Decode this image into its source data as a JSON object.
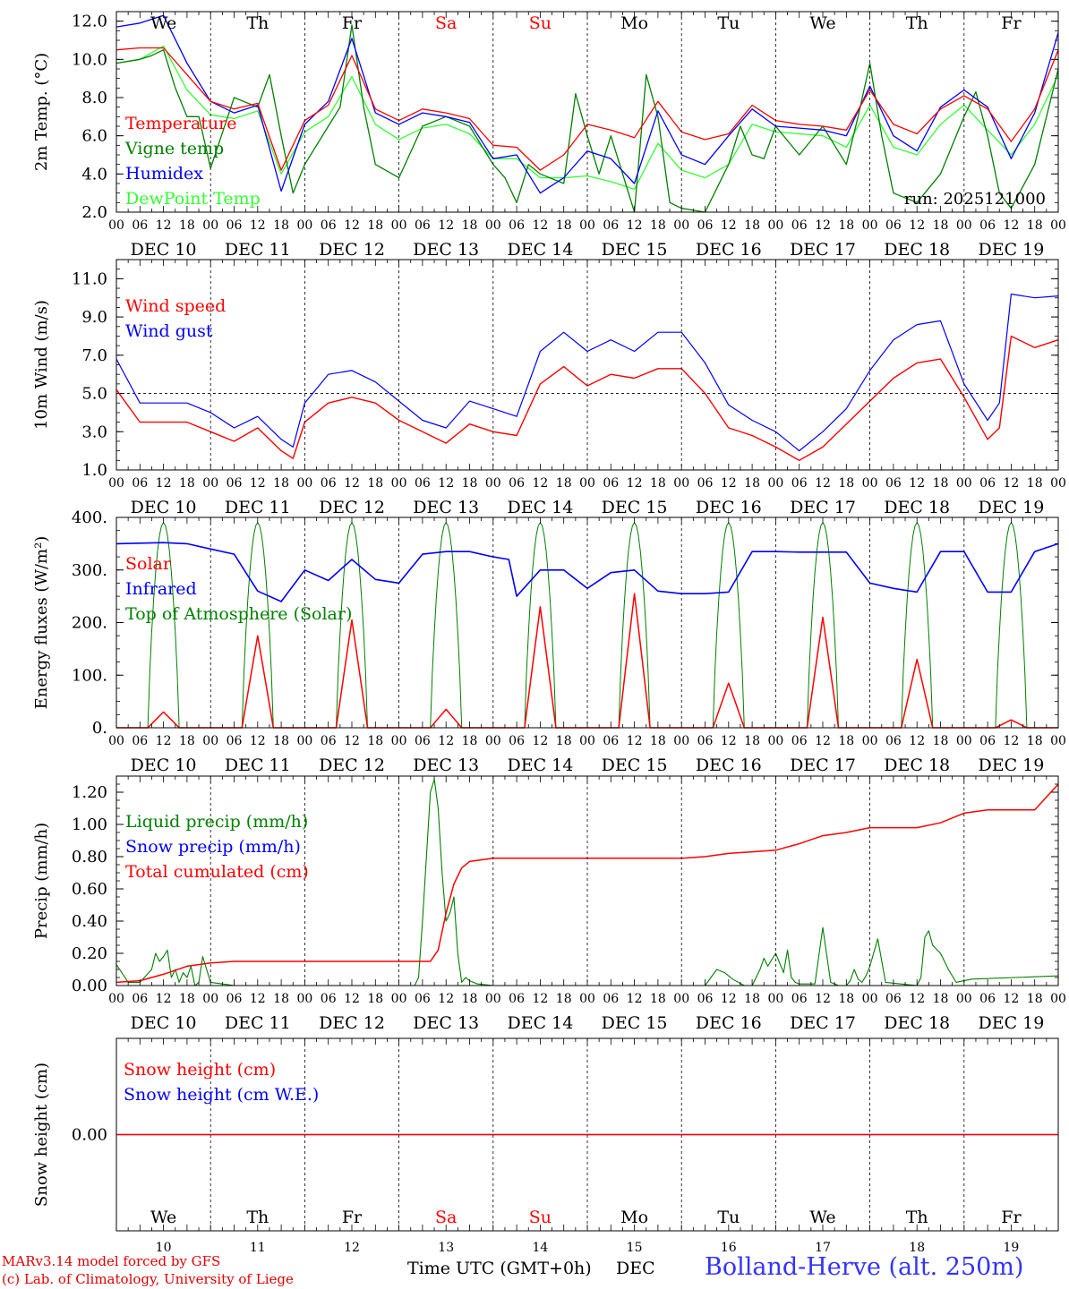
{
  "chart_data": [
    {
      "id": "temp",
      "type": "line",
      "ylabel": "2m Temp. (°C)",
      "ylim": [
        2.0,
        12.5
      ],
      "yticks": [
        2.0,
        4.0,
        6.0,
        8.0,
        10.0,
        12.0
      ],
      "annotation": "run: 2025121000",
      "series": [
        {
          "name": "Temperature",
          "color": "#ff0000",
          "x": [
            0,
            6,
            12,
            18,
            24,
            30,
            36,
            42,
            48,
            54,
            60,
            66,
            72,
            78,
            84,
            90,
            96,
            102,
            108,
            114,
            120,
            126,
            132,
            138,
            144,
            150,
            156,
            162,
            168,
            174,
            180,
            186,
            192,
            198,
            204,
            210,
            216,
            222,
            228,
            234,
            240
          ],
          "y": [
            10.5,
            10.6,
            10.6,
            9.2,
            7.8,
            7.4,
            7.7,
            4.2,
            6.8,
            7.6,
            10.2,
            7.4,
            6.8,
            7.4,
            7.2,
            6.9,
            5.5,
            5.4,
            4.2,
            5.0,
            6.6,
            6.3,
            5.9,
            7.8,
            6.2,
            5.8,
            6.1,
            7.6,
            6.8,
            6.6,
            6.5,
            6.3,
            8.4,
            6.6,
            6.1,
            7.4,
            8.1,
            7.4,
            5.7,
            7.4,
            10.5
          ]
        },
        {
          "name": "Vigne temp",
          "color": "#008000",
          "x": [
            0,
            6,
            9,
            12,
            15,
            18,
            21,
            24,
            30,
            36,
            39,
            42,
            45,
            48,
            54,
            57,
            60,
            63,
            66,
            72,
            78,
            84,
            90,
            96,
            99,
            102,
            105,
            108,
            114,
            117,
            120,
            123,
            126,
            132,
            135,
            138,
            141,
            144,
            150,
            156,
            159,
            162,
            165,
            168,
            174,
            180,
            186,
            189,
            192,
            195,
            198,
            204,
            210,
            216,
            219,
            222,
            225,
            228,
            234,
            240
          ],
          "y": [
            9.8,
            10.0,
            10.2,
            10.5,
            8.5,
            7.0,
            7.0,
            4.3,
            8.0,
            7.5,
            9.2,
            6.0,
            3.0,
            4.5,
            6.5,
            7.5,
            11.8,
            7.5,
            4.5,
            3.8,
            6.5,
            7.0,
            6.5,
            4.5,
            3.8,
            2.5,
            4.5,
            4.0,
            3.5,
            8.2,
            6.0,
            4.0,
            6.0,
            2.0,
            9.2,
            7.0,
            2.5,
            2.2,
            2.0,
            4.5,
            6.5,
            5.0,
            4.8,
            6.5,
            5.0,
            6.5,
            4.5,
            7.0,
            9.8,
            6.0,
            3.0,
            2.5,
            4.0,
            7.0,
            8.3,
            6.0,
            3.0,
            2.2,
            4.5,
            9.5
          ]
        },
        {
          "name": "Humidex",
          "color": "#0000ff",
          "x": [
            0,
            6,
            12,
            18,
            24,
            30,
            36,
            42,
            48,
            54,
            60,
            66,
            72,
            78,
            84,
            90,
            96,
            102,
            108,
            114,
            120,
            126,
            132,
            138,
            144,
            150,
            156,
            162,
            168,
            174,
            180,
            186,
            192,
            198,
            204,
            210,
            216,
            222,
            228,
            234,
            240
          ],
          "y": [
            11.7,
            11.9,
            12.3,
            9.8,
            7.8,
            7.2,
            7.6,
            3.1,
            6.6,
            7.8,
            11.1,
            7.2,
            6.6,
            7.2,
            7.0,
            6.7,
            4.8,
            5.0,
            3.0,
            3.8,
            5.2,
            4.8,
            3.5,
            7.3,
            5.0,
            4.5,
            6.0,
            7.4,
            6.5,
            6.4,
            6.3,
            6.0,
            8.6,
            6.0,
            5.2,
            7.5,
            8.4,
            7.5,
            4.8,
            7.2,
            11.4
          ]
        },
        {
          "name": "DewPoint Temp",
          "color": "#33ff33",
          "x": [
            0,
            6,
            12,
            18,
            24,
            30,
            36,
            42,
            48,
            54,
            60,
            66,
            72,
            78,
            84,
            90,
            96,
            102,
            108,
            114,
            120,
            126,
            132,
            138,
            144,
            150,
            156,
            162,
            168,
            174,
            180,
            186,
            192,
            198,
            204,
            210,
            216,
            222,
            228,
            234,
            240
          ],
          "y": [
            9.8,
            10.0,
            10.7,
            8.4,
            7.1,
            6.9,
            7.3,
            4.0,
            6.2,
            7.0,
            9.1,
            6.6,
            5.8,
            6.4,
            6.6,
            6.1,
            4.8,
            4.8,
            3.8,
            3.8,
            3.9,
            3.6,
            3.2,
            5.6,
            4.2,
            3.8,
            4.5,
            6.6,
            6.2,
            6.1,
            6.0,
            5.4,
            7.6,
            5.4,
            5.0,
            6.6,
            7.6,
            6.3,
            5.0,
            6.6,
            9.2
          ]
        }
      ]
    },
    {
      "id": "wind",
      "type": "line",
      "ylabel": "10m Wind (m/s)",
      "ylim": [
        1.0,
        12.0
      ],
      "yticks": [
        1.0,
        3.0,
        5.0,
        7.0,
        9.0,
        11.0
      ],
      "reference_line": 5.0,
      "series": [
        {
          "name": "Wind speed",
          "color": "#ff0000",
          "x": [
            0,
            6,
            12,
            18,
            24,
            30,
            36,
            42,
            45,
            48,
            54,
            60,
            66,
            72,
            78,
            84,
            90,
            96,
            102,
            108,
            114,
            120,
            126,
            132,
            138,
            144,
            150,
            156,
            162,
            168,
            174,
            180,
            186,
            192,
            198,
            204,
            210,
            216,
            222,
            225,
            228,
            234,
            240
          ],
          "y": [
            5.2,
            3.5,
            3.5,
            3.5,
            3.0,
            2.5,
            3.2,
            2.0,
            1.6,
            3.5,
            4.5,
            4.8,
            4.5,
            3.6,
            3.0,
            2.4,
            3.4,
            3.0,
            2.8,
            5.5,
            6.4,
            5.4,
            6.0,
            5.8,
            6.3,
            6.3,
            5.0,
            3.2,
            2.8,
            2.2,
            1.5,
            2.2,
            3.4,
            4.6,
            5.8,
            6.6,
            6.8,
            4.8,
            2.6,
            3.2,
            8.0,
            7.4,
            7.8
          ]
        },
        {
          "name": "Wind gust",
          "color": "#0000ff",
          "x": [
            0,
            6,
            12,
            18,
            24,
            30,
            36,
            42,
            45,
            48,
            54,
            60,
            66,
            72,
            78,
            84,
            90,
            96,
            102,
            108,
            114,
            120,
            126,
            132,
            138,
            144,
            150,
            156,
            162,
            168,
            174,
            180,
            186,
            192,
            198,
            204,
            210,
            216,
            222,
            225,
            228,
            234,
            240
          ],
          "y": [
            6.8,
            4.5,
            4.5,
            4.5,
            4.0,
            3.2,
            3.8,
            2.6,
            2.2,
            4.5,
            6.0,
            6.2,
            5.6,
            4.6,
            3.6,
            3.2,
            4.6,
            4.2,
            3.8,
            7.2,
            8.2,
            7.2,
            7.8,
            7.2,
            8.2,
            8.2,
            6.6,
            4.4,
            3.6,
            3.0,
            2.0,
            3.0,
            4.2,
            6.2,
            7.8,
            8.6,
            8.8,
            5.5,
            3.6,
            4.5,
            10.2,
            10.0,
            10.1
          ]
        }
      ]
    },
    {
      "id": "energy",
      "type": "line",
      "ylabel": "Energy fluxes (W/m²)",
      "ylim": [
        0,
        400
      ],
      "yticks": [
        "0.",
        "100.",
        "200.",
        "300.",
        "400."
      ],
      "ytick_values": [
        0,
        100,
        200,
        300,
        400
      ],
      "series": [
        {
          "name": "Solar",
          "color": "#ff0000",
          "peaks": [
            30,
            175,
            205,
            35,
            230,
            255,
            85,
            210,
            130,
            15
          ],
          "peak_hour": 12
        },
        {
          "name": "Infrared",
          "color": "#0000ff",
          "x": [
            0,
            12,
            18,
            24,
            30,
            36,
            42,
            48,
            54,
            60,
            66,
            72,
            78,
            84,
            90,
            96,
            100,
            102,
            108,
            114,
            120,
            126,
            132,
            138,
            144,
            150,
            156,
            162,
            168,
            174,
            180,
            186,
            192,
            198,
            204,
            210,
            216,
            222,
            228,
            234,
            240
          ],
          "y": [
            350,
            352,
            350,
            340,
            330,
            260,
            240,
            300,
            280,
            320,
            282,
            275,
            330,
            335,
            335,
            325,
            320,
            250,
            300,
            300,
            265,
            295,
            300,
            260,
            255,
            255,
            258,
            335,
            335,
            334,
            334,
            334,
            275,
            265,
            258,
            335,
            335,
            258,
            258,
            335,
            350
          ]
        },
        {
          "name": "Top of Atmosphere (Solar)",
          "color": "#008000",
          "peak": 390,
          "window_hours": [
            8,
            16
          ]
        }
      ]
    },
    {
      "id": "precip",
      "type": "line",
      "ylabel": "Precip (mm/h)",
      "ylim": [
        0,
        1.3
      ],
      "yticks": [
        0.0,
        0.2,
        0.4,
        0.6,
        0.8,
        1.0,
        1.2
      ],
      "series": [
        {
          "name": "Liquid precip (mm/h)",
          "color": "#008000",
          "x": [
            0,
            3,
            6,
            9,
            10,
            11,
            12,
            13,
            14,
            15,
            16,
            17,
            18,
            19,
            20,
            21,
            22,
            24,
            27,
            30,
            76,
            77,
            78,
            80,
            81,
            82,
            83,
            84,
            85,
            86,
            87,
            88,
            89,
            90,
            92,
            96,
            100,
            150,
            153,
            155,
            156,
            157,
            160,
            162,
            164,
            165,
            166,
            168,
            170,
            171,
            172,
            173,
            174,
            178,
            180,
            182,
            184,
            186,
            187,
            188,
            189,
            190,
            191,
            192,
            194,
            196,
            204,
            205,
            206,
            207,
            208,
            210,
            212,
            214,
            216,
            218,
            240
          ],
          "y": [
            0.13,
            0.02,
            0.02,
            0.1,
            0.2,
            0.15,
            0.18,
            0.22,
            0.05,
            0.1,
            0.02,
            0.08,
            0.05,
            0.12,
            0.0,
            0.02,
            0.18,
            0.02,
            0.01,
            0.0,
            0.0,
            0.05,
            0.4,
            1.2,
            1.28,
            1.1,
            0.7,
            0.4,
            0.45,
            0.55,
            0.2,
            0.02,
            0.05,
            0.03,
            0.01,
            0.0,
            0.0,
            0.0,
            0.1,
            0.08,
            0.06,
            0.04,
            0.0,
            0.0,
            0.1,
            0.17,
            0.12,
            0.2,
            0.08,
            0.22,
            0.05,
            0.02,
            0.01,
            0.01,
            0.36,
            0.02,
            0.0,
            0.0,
            0.03,
            0.1,
            0.04,
            0.02,
            0.06,
            0.12,
            0.29,
            0.02,
            0.0,
            0.05,
            0.3,
            0.34,
            0.25,
            0.2,
            0.1,
            0.02,
            0.03,
            0.04,
            0.06
          ]
        },
        {
          "name": "Snow precip (mm/h)",
          "color": "#0000ff",
          "x": [
            0,
            240
          ],
          "y": [
            0,
            0
          ]
        },
        {
          "name": "Total cumulated (cm)",
          "color": "#ff0000",
          "x": [
            0,
            6,
            12,
            18,
            24,
            30,
            36,
            48,
            60,
            72,
            80,
            82,
            84,
            86,
            88,
            90,
            96,
            102,
            108,
            120,
            132,
            144,
            150,
            156,
            162,
            168,
            174,
            180,
            186,
            192,
            198,
            204,
            210,
            216,
            222,
            228,
            234,
            240
          ],
          "y": [
            0.02,
            0.03,
            0.07,
            0.12,
            0.14,
            0.15,
            0.15,
            0.15,
            0.15,
            0.15,
            0.15,
            0.22,
            0.45,
            0.63,
            0.73,
            0.77,
            0.79,
            0.79,
            0.79,
            0.79,
            0.79,
            0.79,
            0.8,
            0.82,
            0.83,
            0.84,
            0.88,
            0.93,
            0.95,
            0.98,
            0.98,
            0.98,
            1.01,
            1.07,
            1.09,
            1.09,
            1.09,
            1.25
          ]
        }
      ]
    },
    {
      "id": "snow",
      "type": "line",
      "ylabel": "Snow height (cm)",
      "ylim": [
        -1,
        1
      ],
      "yticks": [
        "0.00"
      ],
      "ytick_values": [
        0
      ],
      "series": [
        {
          "name": "Snow height (cm)",
          "color": "#ff0000",
          "x": [
            0,
            240
          ],
          "y": [
            0,
            0
          ]
        },
        {
          "name": "Snow height (cm W.E.)",
          "color": "#0000ff",
          "x": [
            0,
            240
          ],
          "y": [
            0,
            0
          ]
        }
      ]
    }
  ],
  "x_axis": {
    "xlim_hours": [
      0,
      240
    ],
    "hour_labels": [
      "00",
      "06",
      "12",
      "18"
    ],
    "dates": [
      "DEC 10",
      "DEC 11",
      "DEC 12",
      "DEC 13",
      "DEC 14",
      "DEC 15",
      "DEC 16",
      "DEC 17",
      "DEC 18",
      "DEC 19"
    ],
    "day_numbers": [
      "10",
      "11",
      "12",
      "13",
      "14",
      "15",
      "16",
      "17",
      "18",
      "19"
    ],
    "weekdays": [
      "We",
      "Th",
      "Fr",
      "Sa",
      "Su",
      "Mo",
      "Tu",
      "We",
      "Th",
      "Fr"
    ],
    "weekend_days": [
      3,
      4
    ],
    "weekday_color": "#000000",
    "weekend_color": "#ff0000",
    "xlabel": "Time UTC (GMT+0h)",
    "month": "DEC"
  },
  "footer": {
    "model_line": "MARv3.14 model forced by GFS",
    "lab_line": "(c) Lab. of Climatology, University of Liege",
    "station": "Bolland-Herve (alt. 250m)",
    "station_color": "#3333ff"
  }
}
